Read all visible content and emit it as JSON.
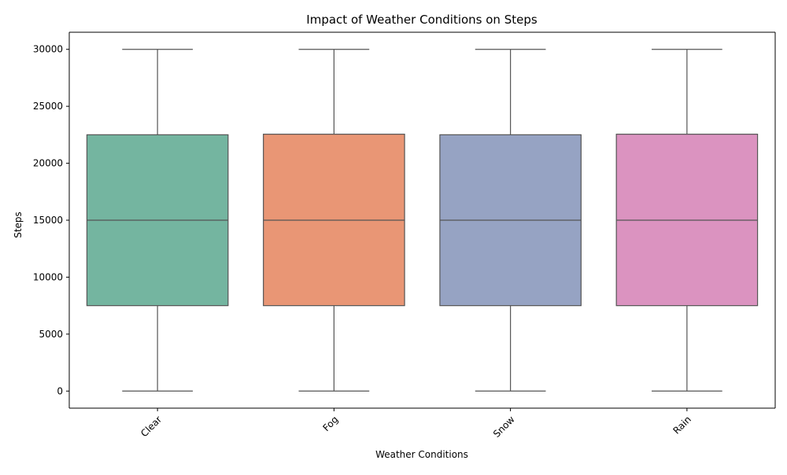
{
  "chart_data": {
    "type": "box",
    "title": "Impact of Weather Conditions on Steps",
    "xlabel": "Weather Conditions",
    "ylabel": "Steps",
    "ylim": [
      -1500,
      31500
    ],
    "yticks": [
      0,
      5000,
      10000,
      15000,
      20000,
      25000,
      30000
    ],
    "categories": [
      "Clear",
      "Fog",
      "Snow",
      "Rain"
    ],
    "boxes": [
      {
        "category": "Clear",
        "whislo": 0,
        "q1": 7500,
        "med": 15000,
        "q3": 22500,
        "whishi": 30000,
        "color": "#74b5a0"
      },
      {
        "category": "Fog",
        "whislo": 0,
        "q1": 7500,
        "med": 15000,
        "q3": 22550,
        "whishi": 30000,
        "color": "#e99675"
      },
      {
        "category": "Snow",
        "whislo": 0,
        "q1": 7500,
        "med": 15000,
        "q3": 22500,
        "whishi": 30000,
        "color": "#96a3c3"
      },
      {
        "category": "Rain",
        "whislo": 0,
        "q1": 7500,
        "med": 15000,
        "q3": 22550,
        "whishi": 30000,
        "color": "#db93c0"
      }
    ],
    "grid": false,
    "legend": "none",
    "line_color": "#555555"
  }
}
